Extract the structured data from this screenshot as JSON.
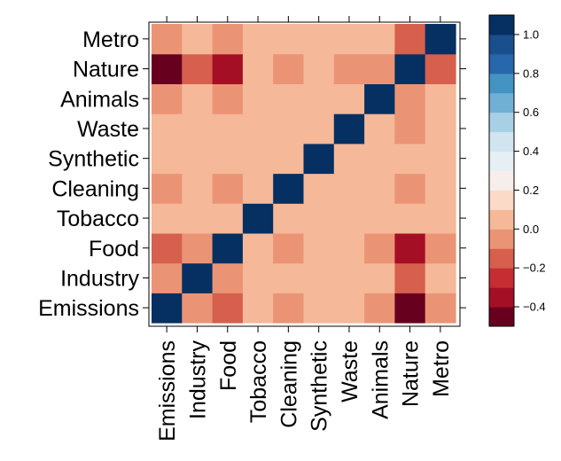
{
  "chart_data": {
    "type": "heatmap",
    "title": "",
    "xlabel": "",
    "ylabel": "",
    "x_categories": [
      "Emissions",
      "Industry",
      "Food",
      "Tobacco",
      "Cleaning",
      "Synthetic",
      "Waste",
      "Animals",
      "Nature",
      "Metro"
    ],
    "y_categories": [
      "Emissions",
      "Industry",
      "Food",
      "Tobacco",
      "Cleaning",
      "Synthetic",
      "Waste",
      "Animals",
      "Nature",
      "Metro"
    ],
    "matrix": [
      [
        1.0,
        -0.05,
        -0.2,
        0.0,
        -0.05,
        0.0,
        0.0,
        -0.05,
        -0.45,
        -0.05
      ],
      [
        -0.05,
        1.0,
        -0.05,
        0.0,
        0.0,
        0.0,
        0.0,
        0.0,
        -0.2,
        0.0
      ],
      [
        -0.2,
        -0.05,
        1.0,
        0.0,
        -0.05,
        0.0,
        0.0,
        -0.05,
        -0.35,
        -0.05
      ],
      [
        0.0,
        0.0,
        0.0,
        1.0,
        0.0,
        0.0,
        0.0,
        0.0,
        0.0,
        0.0
      ],
      [
        -0.05,
        0.0,
        -0.05,
        0.0,
        1.0,
        0.0,
        0.0,
        0.0,
        -0.05,
        0.0
      ],
      [
        0.0,
        0.0,
        0.0,
        0.0,
        0.0,
        1.0,
        0.0,
        0.0,
        0.0,
        0.0
      ],
      [
        0.0,
        0.0,
        0.0,
        0.0,
        0.0,
        0.0,
        1.0,
        0.0,
        -0.05,
        0.0
      ],
      [
        -0.05,
        0.0,
        -0.05,
        0.0,
        0.0,
        0.0,
        0.0,
        1.0,
        -0.05,
        0.0
      ],
      [
        -0.45,
        -0.2,
        -0.35,
        0.0,
        -0.05,
        0.0,
        -0.05,
        -0.05,
        1.0,
        -0.2
      ],
      [
        -0.05,
        0.0,
        -0.05,
        0.0,
        0.0,
        0.0,
        0.0,
        0.0,
        -0.2,
        1.0
      ]
    ],
    "colorbar": {
      "range": [
        -0.5,
        1.1
      ],
      "ticks": [
        "1.0",
        "0.8",
        "0.6",
        "0.4",
        "0.2",
        "0.0",
        "−0.2",
        "−0.4"
      ],
      "tick_values": [
        1.0,
        0.8,
        0.6,
        0.4,
        0.2,
        0.0,
        -0.2,
        -0.4
      ],
      "band_edges": [
        -0.5,
        -0.4,
        -0.3,
        -0.2,
        -0.1,
        0.0,
        0.1,
        0.2,
        0.3,
        0.4,
        0.5,
        0.6,
        0.7,
        0.8,
        0.9,
        1.0,
        1.1
      ],
      "band_colors": [
        "#67001f",
        "#a50f26",
        "#c62d33",
        "#d65f4d",
        "#eb9475",
        "#f5b898",
        "#fbdac8",
        "#f6eeea",
        "#e6eff4",
        "#d1e5f0",
        "#a8d0e5",
        "#6fb0d4",
        "#4393c3",
        "#2767ac",
        "#1a4f8d",
        "#053061"
      ]
    },
    "grid": false,
    "legend": "right"
  }
}
